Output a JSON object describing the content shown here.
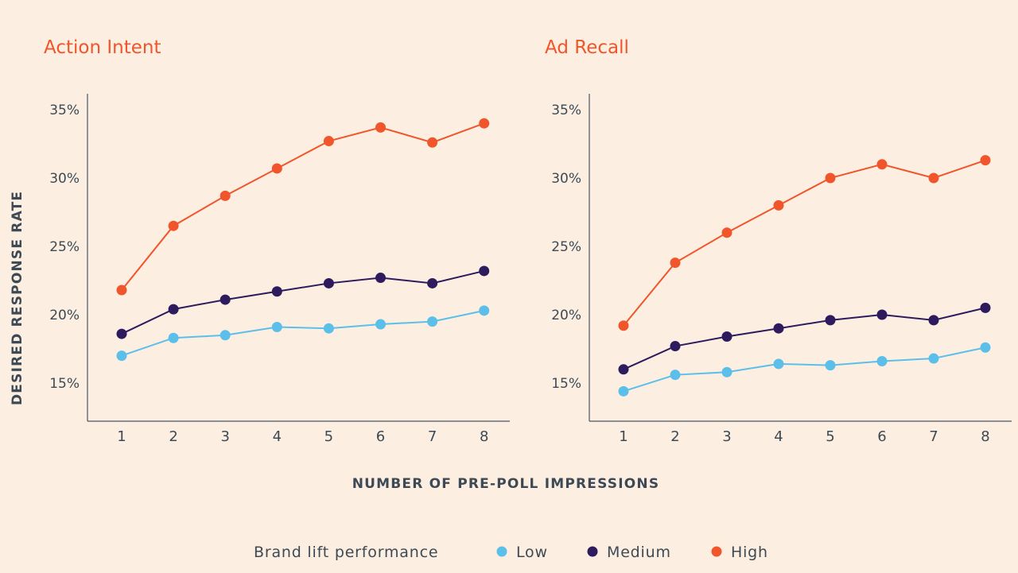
{
  "ylabel": "DESIRED RESPONSE RATE",
  "xlabel": "NUMBER OF PRE-POLL IMPRESSIONS",
  "legend": {
    "title": "Brand lift performance",
    "items": [
      {
        "label": "Low",
        "color": "#5cbfea"
      },
      {
        "label": "Medium",
        "color": "#2d1b5e"
      },
      {
        "label": "High",
        "color": "#f0552b"
      }
    ]
  },
  "chart_data": [
    {
      "type": "line",
      "title": "Action Intent",
      "x": [
        1,
        2,
        3,
        4,
        5,
        6,
        7,
        8
      ],
      "yticks": [
        "15%",
        "20%",
        "25%",
        "30%",
        "35%"
      ],
      "ylim": [
        12,
        36
      ],
      "series": [
        {
          "name": "Low",
          "color": "#5cbfea",
          "values": [
            17.0,
            18.3,
            18.5,
            19.1,
            19.0,
            19.3,
            19.5,
            20.3
          ]
        },
        {
          "name": "Medium",
          "color": "#2d1b5e",
          "values": [
            18.6,
            20.4,
            21.1,
            21.7,
            22.3,
            22.7,
            22.3,
            23.2
          ]
        },
        {
          "name": "High",
          "color": "#f0552b",
          "values": [
            21.8,
            26.5,
            28.7,
            30.7,
            32.7,
            33.7,
            32.6,
            34.0
          ]
        }
      ]
    },
    {
      "type": "line",
      "title": "Ad Recall",
      "x": [
        1,
        2,
        3,
        4,
        5,
        6,
        7,
        8
      ],
      "yticks": [
        "15%",
        "20%",
        "25%",
        "30%",
        "35%"
      ],
      "ylim": [
        12,
        36
      ],
      "series": [
        {
          "name": "Low",
          "color": "#5cbfea",
          "values": [
            14.4,
            15.6,
            15.8,
            16.4,
            16.3,
            16.6,
            16.8,
            17.6
          ]
        },
        {
          "name": "Medium",
          "color": "#2d1b5e",
          "values": [
            16.0,
            17.7,
            18.4,
            19.0,
            19.6,
            20.0,
            19.6,
            20.5
          ]
        },
        {
          "name": "High",
          "color": "#f0552b",
          "values": [
            19.2,
            23.8,
            26.0,
            28.0,
            30.0,
            31.0,
            30.0,
            31.3
          ]
        }
      ]
    }
  ]
}
